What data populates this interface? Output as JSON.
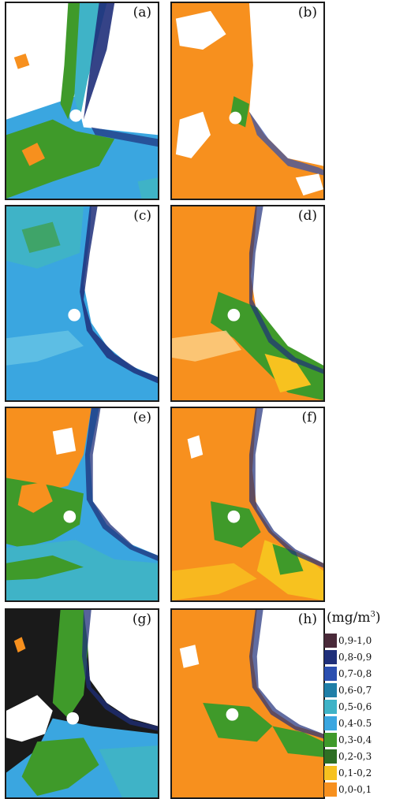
{
  "panels": [
    {
      "label": "(a)",
      "scheme": "green-cyan"
    },
    {
      "label": "(b)",
      "scheme": "orange"
    },
    {
      "label": "(c)",
      "scheme": "cyan"
    },
    {
      "label": "(d)",
      "scheme": "orange-green"
    },
    {
      "label": "(e)",
      "scheme": "orange-green-cyan"
    },
    {
      "label": "(f)",
      "scheme": "orange-yellow"
    },
    {
      "label": "(g)",
      "scheme": "black-green-cyan"
    },
    {
      "label": "(h)",
      "scheme": "orange-green"
    }
  ],
  "legend": {
    "unit": "(mg/m",
    "unit_sup": "3",
    "unit_close": ")",
    "items": [
      {
        "label": "0,9-1,0",
        "color": "#4a2a3a"
      },
      {
        "label": "0,8-0,9",
        "color": "#1f2f7a"
      },
      {
        "label": "0,7-0,8",
        "color": "#2b4fb0"
      },
      {
        "label": "0,6-0,7",
        "color": "#1f7fa8"
      },
      {
        "label": "0,5-0,6",
        "color": "#3fb3c7"
      },
      {
        "label": "0,4-0.5",
        "color": "#3aa6e0"
      },
      {
        "label": "0,3-0,4",
        "color": "#3f9a2a"
      },
      {
        "label": "0,2-0,3",
        "color": "#2e6f24"
      },
      {
        "label": "0,1-0,2",
        "color": "#f7c21f"
      },
      {
        "label": "0,0-0,1",
        "color": "#f7901e"
      }
    ]
  }
}
